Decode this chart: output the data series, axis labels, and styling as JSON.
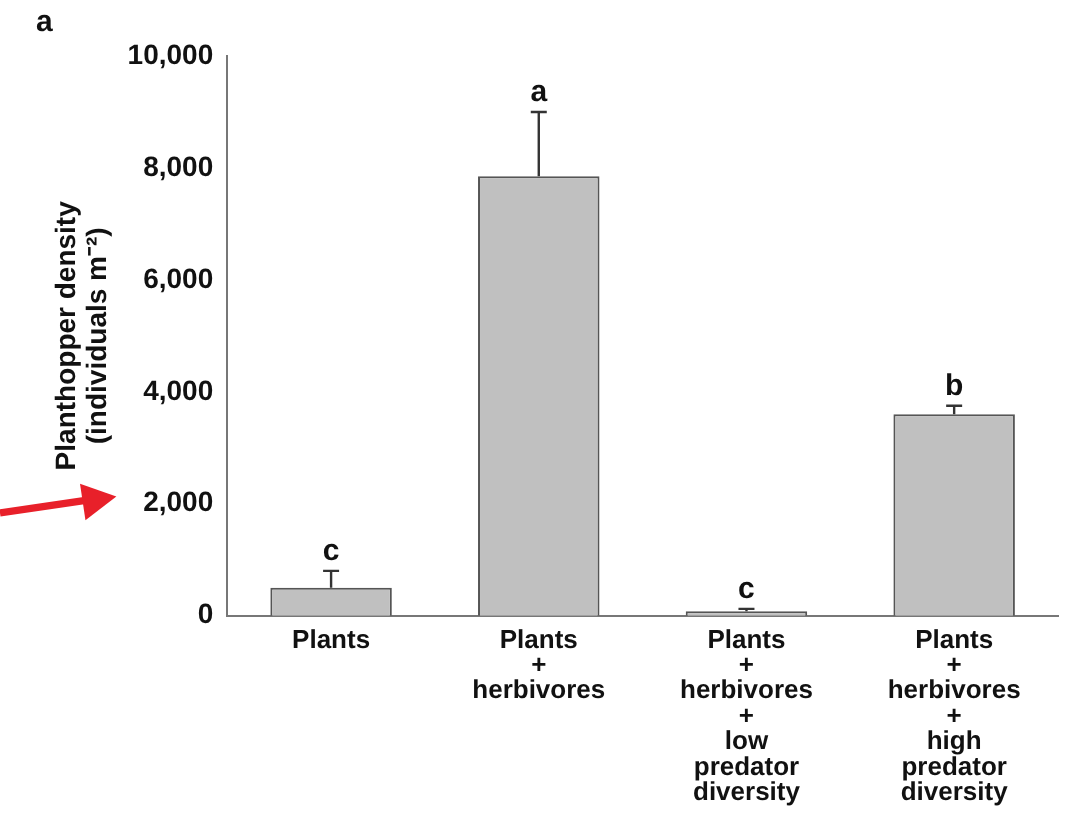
{
  "chart_data": {
    "type": "bar",
    "ylabel": "Planthopper density\n(individuals m⁻²)",
    "categories": [
      "Plants",
      "Plants\n+\nherbivores",
      "Plants\n+\nherbivores\n+\nlow\npredator\ndiversity",
      "Plants\n+\nherbivores\n+\nhigh\npredator\ndiversity"
    ],
    "values": [
      500,
      7850,
      80,
      3600
    ],
    "errors": [
      [
        500,
        800
      ],
      [
        7850,
        9000
      ],
      [
        80,
        120
      ],
      [
        3600,
        3750
      ]
    ],
    "color": "#c0c0c0",
    "ylim": [
      0,
      10000
    ],
    "yticks": [
      {
        "value": 0,
        "label": "0"
      },
      {
        "value": 2000,
        "label": "2,000"
      },
      {
        "value": 4000,
        "label": "4,000"
      },
      {
        "value": 6000,
        "label": "6,000"
      },
      {
        "value": 8000,
        "label": "8,000"
      },
      {
        "value": 10000,
        "label": "10,000"
      }
    ],
    "grid": false,
    "annotations": [
      "a",
      {
        "text": "c",
        "x": "Plants",
        "y": 800
      },
      {
        "text": "a",
        "x": "Plants\n+\nherbivores",
        "y": 9000
      },
      {
        "text": "c",
        "x": "Plants\n+\nherbivores\n+\nlow\npredator\ndiversity",
        "y": 120
      },
      {
        "text": "b",
        "x": "Plants\n+\nherbivores\n+\nhigh\npredator\ndiversity",
        "y": 3750
      }
    ]
  }
}
